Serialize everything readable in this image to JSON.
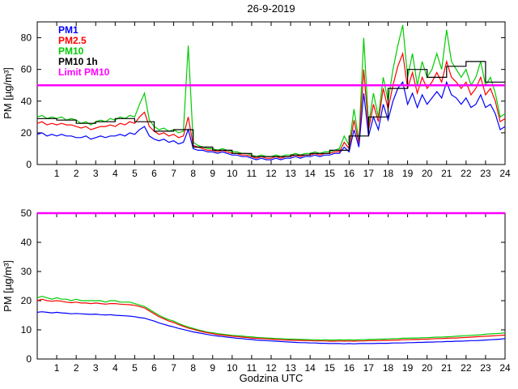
{
  "figure": {
    "title": "26-9-2019",
    "xlabel": "Godzina UTC",
    "ylabel": "PM [µg/m³]"
  },
  "chart_data": [
    {
      "type": "line",
      "title": "26-9-2019",
      "ylabel": "PM [µg/m³]",
      "xlabel": "",
      "xlim": [
        0,
        24
      ],
      "ylim": [
        0,
        90
      ],
      "xticks": [
        1,
        2,
        3,
        4,
        5,
        6,
        7,
        8,
        9,
        10,
        11,
        12,
        13,
        14,
        15,
        16,
        17,
        18,
        19,
        20,
        21,
        22,
        23,
        24
      ],
      "yticks": [
        0,
        20,
        40,
        60,
        80
      ],
      "grid": false,
      "legend_position": "top-left",
      "legend": [
        "PM1",
        "PM2.5",
        "PM10",
        "PM10 1h",
        "Limit PM10"
      ],
      "x": {
        "start": 0,
        "step": 0.25,
        "count": 97
      },
      "series": [
        {
          "label": "PM1",
          "color": "#0000ff",
          "values": [
            19,
            20,
            18,
            19,
            18,
            19,
            18,
            18,
            17,
            17,
            18,
            16,
            17,
            18,
            17,
            18,
            18,
            19,
            18,
            20,
            19,
            22,
            24,
            18,
            16,
            15,
            16,
            14,
            15,
            13,
            14,
            22,
            10,
            9,
            9,
            8,
            8,
            7,
            8,
            7,
            6,
            6,
            5,
            5,
            4,
            3,
            4,
            3,
            3,
            4,
            3,
            4,
            4,
            5,
            4,
            5,
            5,
            6,
            5,
            6,
            6,
            7,
            7,
            11,
            8,
            22,
            11,
            45,
            18,
            30,
            22,
            38,
            28,
            40,
            48,
            52,
            38,
            45,
            36,
            44,
            38,
            42,
            46,
            42,
            52,
            44,
            42,
            38,
            42,
            36,
            38,
            44,
            36,
            38,
            32,
            22,
            24
          ]
        },
        {
          "label": "PM2.5",
          "color": "#ff0000",
          "values": [
            26,
            27,
            25,
            26,
            25,
            26,
            25,
            25,
            24,
            23,
            24,
            22,
            23,
            24,
            24,
            25,
            24,
            26,
            25,
            27,
            26,
            30,
            33,
            24,
            21,
            19,
            20,
            18,
            19,
            17,
            18,
            30,
            12,
            11,
            10,
            9,
            9,
            8,
            9,
            8,
            7,
            7,
            6,
            6,
            5,
            4,
            5,
            4,
            4,
            5,
            4,
            5,
            5,
            6,
            5,
            6,
            6,
            7,
            6,
            7,
            7,
            8,
            8,
            14,
            10,
            28,
            13,
            60,
            22,
            38,
            27,
            48,
            35,
            50,
            62,
            70,
            48,
            58,
            45,
            55,
            48,
            52,
            58,
            52,
            65,
            55,
            52,
            48,
            52,
            44,
            48,
            55,
            44,
            48,
            40,
            27,
            29
          ]
        },
        {
          "label": "PM10",
          "color": "#00cc00",
          "values": [
            30,
            31,
            29,
            30,
            29,
            30,
            28,
            29,
            28,
            26,
            27,
            25,
            27,
            28,
            27,
            29,
            28,
            30,
            29,
            31,
            30,
            38,
            45,
            28,
            24,
            22,
            23,
            21,
            22,
            20,
            21,
            75,
            14,
            12,
            11,
            10,
            10,
            9,
            10,
            9,
            8,
            8,
            7,
            7,
            6,
            5,
            6,
            5,
            5,
            6,
            5,
            6,
            6,
            7,
            6,
            7,
            7,
            8,
            7,
            8,
            8,
            9,
            10,
            18,
            12,
            35,
            15,
            80,
            25,
            45,
            30,
            55,
            40,
            60,
            75,
            88,
            55,
            70,
            50,
            65,
            55,
            60,
            70,
            60,
            85,
            65,
            60,
            55,
            60,
            50,
            55,
            65,
            50,
            55,
            45,
            30,
            32
          ]
        },
        {
          "label": "PM10 1h",
          "color": "#000000",
          "step_hourly": true,
          "values": [
            29,
            28,
            26,
            27,
            29,
            27,
            21,
            22,
            11,
            9,
            7,
            5,
            5,
            6,
            7,
            9,
            18,
            30,
            48,
            60,
            55,
            62,
            65,
            52
          ]
        },
        {
          "label": "Limit PM10",
          "color": "#ff00ff",
          "constant": 50
        }
      ]
    },
    {
      "type": "line",
      "title": "",
      "ylabel": "PM [µg/m³]",
      "xlabel": "Godzina UTC",
      "xlim": [
        0,
        24
      ],
      "ylim": [
        0,
        50
      ],
      "xticks": [
        1,
        2,
        3,
        4,
        5,
        6,
        7,
        8,
        9,
        10,
        11,
        12,
        13,
        14,
        15,
        16,
        17,
        18,
        19,
        20,
        21,
        22,
        23,
        24
      ],
      "yticks": [
        0,
        10,
        20,
        30,
        40,
        50
      ],
      "grid": false,
      "x": {
        "start": 0,
        "step": 0.25,
        "count": 97
      },
      "series": [
        {
          "label": "PM1",
          "color": "#0000ff",
          "values": [
            16,
            16.2,
            16,
            15.8,
            16,
            15.8,
            15.7,
            15.5,
            15.6,
            15.5,
            15.4,
            15.3,
            15.4,
            15.2,
            15.1,
            15.2,
            15,
            14.9,
            14.8,
            14.7,
            14.5,
            14.2,
            14,
            13.5,
            13,
            12.4,
            11.9,
            11.4,
            11,
            10.5,
            10.1,
            9.7,
            9.3,
            9,
            8.7,
            8.4,
            8.1,
            7.9,
            7.7,
            7.5,
            7.3,
            7.1,
            7,
            6.8,
            6.7,
            6.5,
            6.4,
            6.3,
            6.2,
            6.1,
            6,
            5.9,
            5.8,
            5.7,
            5.6,
            5.6,
            5.5,
            5.5,
            5.4,
            5.4,
            5.3,
            5.3,
            5.3,
            5.2,
            5.3,
            5.2,
            5.3,
            5.3,
            5.3,
            5.3,
            5.4,
            5.4,
            5.4,
            5.5,
            5.5,
            5.5,
            5.6,
            5.6,
            5.7,
            5.7,
            5.8,
            5.8,
            5.9,
            5.9,
            6,
            6,
            6.1,
            6.1,
            6.2,
            6.3,
            6.3,
            6.4,
            6.5,
            6.6,
            6.7,
            6.8,
            7
          ]
        },
        {
          "label": "PM2.5",
          "color": "#ff0000",
          "values": [
            20,
            20.5,
            20,
            19.8,
            20,
            19.8,
            19.5,
            19.3,
            19.5,
            19.2,
            19.2,
            19,
            19.2,
            19,
            18.8,
            19,
            19,
            18.8,
            18.7,
            18.6,
            18.4,
            18,
            17.5,
            16.5,
            15.5,
            14.5,
            13.8,
            13,
            12.5,
            11.8,
            11.2,
            10.6,
            10.2,
            9.7,
            9.3,
            9,
            8.7,
            8.4,
            8.2,
            8,
            7.8,
            7.7,
            7.5,
            7.4,
            7.2,
            7.1,
            7,
            6.9,
            6.8,
            6.7,
            6.6,
            6.5,
            6.5,
            6.4,
            6.4,
            6.3,
            6.3,
            6.2,
            6.2,
            6.2,
            6.1,
            6.1,
            6.2,
            6.1,
            6.2,
            6.1,
            6.2,
            6.2,
            6.3,
            6.3,
            6.3,
            6.4,
            6.4,
            6.5,
            6.5,
            6.6,
            6.6,
            6.7,
            6.7,
            6.8,
            6.8,
            6.9,
            7,
            7,
            7.1,
            7.2,
            7.2,
            7.3,
            7.4,
            7.5,
            7.6,
            7.7,
            7.8,
            7.9,
            8,
            8.1,
            8.2
          ]
        },
        {
          "label": "PM10",
          "color": "#00cc00",
          "values": [
            21,
            21.5,
            21,
            20.5,
            21,
            20.5,
            20.5,
            20,
            20.5,
            20,
            20,
            20,
            20,
            20,
            19.5,
            20,
            20,
            19.5,
            19.5,
            19.5,
            19,
            18.5,
            18,
            17,
            16,
            15,
            14.2,
            13.5,
            13,
            12.2,
            11.5,
            11,
            10.5,
            10,
            9.6,
            9.2,
            9,
            8.7,
            8.5,
            8.3,
            8.1,
            8,
            7.9,
            7.7,
            7.6,
            7.4,
            7.3,
            7.2,
            7.1,
            7,
            7,
            6.9,
            6.8,
            6.8,
            6.7,
            6.7,
            6.6,
            6.6,
            6.5,
            6.6,
            6.5,
            6.5,
            6.6,
            6.5,
            6.6,
            6.5,
            6.6,
            6.6,
            6.7,
            6.7,
            6.8,
            6.8,
            6.9,
            7,
            7,
            7.1,
            7.1,
            7.2,
            7.2,
            7.3,
            7.3,
            7.4,
            7.5,
            7.5,
            7.6,
            7.7,
            7.8,
            7.9,
            8,
            8.1,
            8.2,
            8.3,
            8.5,
            8.6,
            8.7,
            8.8,
            9
          ]
        },
        {
          "label": "Limit PM10",
          "color": "#ff00ff",
          "constant": 50
        }
      ]
    }
  ]
}
